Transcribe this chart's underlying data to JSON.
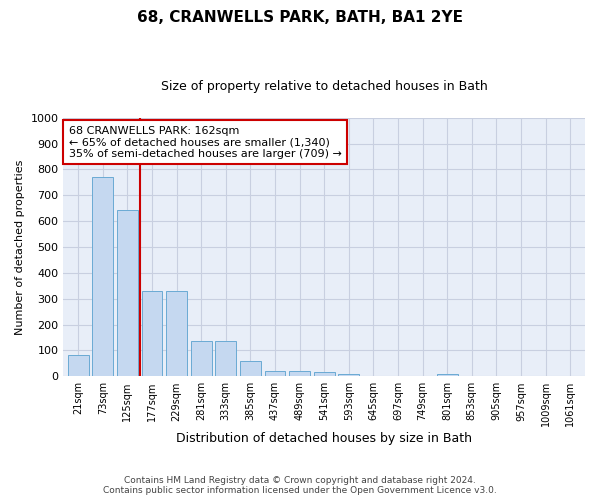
{
  "title": "68, CRANWELLS PARK, BATH, BA1 2YE",
  "subtitle": "Size of property relative to detached houses in Bath",
  "xlabel": "Distribution of detached houses by size in Bath",
  "ylabel": "Number of detached properties",
  "bar_color": "#c5d8f0",
  "bar_edge_color": "#6aaad4",
  "categories": [
    "21sqm",
    "73sqm",
    "125sqm",
    "177sqm",
    "229sqm",
    "281sqm",
    "333sqm",
    "385sqm",
    "437sqm",
    "489sqm",
    "541sqm",
    "593sqm",
    "645sqm",
    "697sqm",
    "749sqm",
    "801sqm",
    "853sqm",
    "905sqm",
    "957sqm",
    "1009sqm",
    "1061sqm"
  ],
  "values": [
    83,
    770,
    645,
    330,
    330,
    135,
    135,
    60,
    22,
    22,
    18,
    10,
    0,
    0,
    0,
    10,
    0,
    0,
    0,
    0,
    0
  ],
  "property_line_x": 2.5,
  "annotation_text": "68 CRANWELLS PARK: 162sqm\n← 65% of detached houses are smaller (1,340)\n35% of semi-detached houses are larger (709) →",
  "annotation_box_color": "#ffffff",
  "annotation_border_color": "#cc0000",
  "red_line_color": "#cc0000",
  "ylim": [
    0,
    1000
  ],
  "yticks": [
    0,
    100,
    200,
    300,
    400,
    500,
    600,
    700,
    800,
    900,
    1000
  ],
  "grid_color": "#c8cfe0",
  "footer_line1": "Contains HM Land Registry data © Crown copyright and database right 2024.",
  "footer_line2": "Contains public sector information licensed under the Open Government Licence v3.0.",
  "bg_color": "#ffffff",
  "plot_bg_color": "#e8eef8"
}
